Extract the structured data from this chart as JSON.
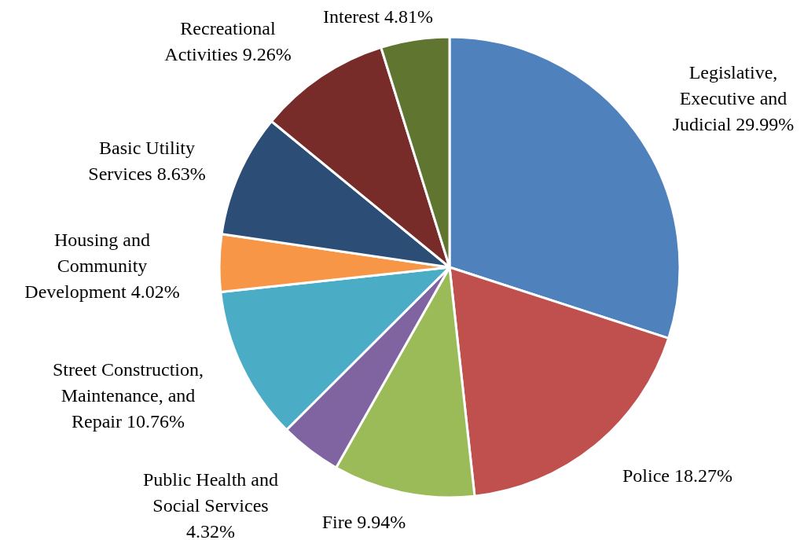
{
  "chart_data": {
    "type": "pie",
    "categories": [
      "Legislative, Executive and Judicial",
      "Police",
      "Fire",
      "Public Health and Social Services",
      "Street Construction, Maintenance, and Repair",
      "Housing and Community Development",
      "Basic Utility Services",
      "Recreational Activities",
      "Interest"
    ],
    "values": [
      29.99,
      18.27,
      9.94,
      4.32,
      10.76,
      4.02,
      8.63,
      9.26,
      4.81
    ],
    "colors": [
      "#4f81bd",
      "#c0504d",
      "#9bbb59",
      "#8064a2",
      "#4bacc6",
      "#f79646",
      "#2c4d75",
      "#772c2a",
      "#5f7530"
    ],
    "value_labels": [
      "29.99%",
      "18.27%",
      "9.94%",
      "4.32%",
      "10.76%",
      "4.02%",
      "8.63%",
      "9.26%",
      "4.81%"
    ]
  }
}
